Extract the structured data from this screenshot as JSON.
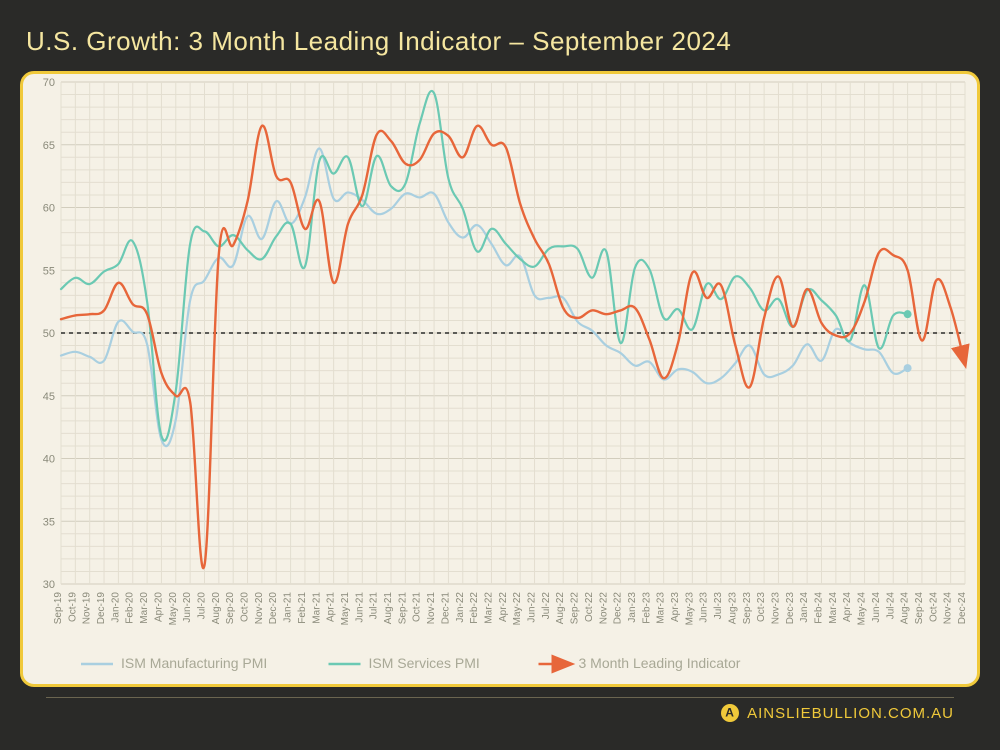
{
  "title": "U.S. Growth: 3 Month Leading Indicator – September 2024",
  "brand": "AINSLIEBULLION.COM.AU",
  "chart": {
    "type": "line",
    "background_color": "#f5f1e6",
    "border_color": "#f0c93a",
    "grid_minor_color": "#e3ded0",
    "grid_major_color": "#d2cdbd",
    "reference_line": {
      "y": 50,
      "color": "#2a2a28",
      "dash": "4 4"
    },
    "ylim": [
      30,
      70
    ],
    "ytick_step": 5,
    "yticks": [
      30,
      35,
      40,
      45,
      50,
      55,
      60,
      65,
      70
    ],
    "label_fontsize": 11,
    "x_categories": [
      "Sep-19",
      "Oct-19",
      "Nov-19",
      "Dec-19",
      "Jan-20",
      "Feb-20",
      "Mar-20",
      "Apr-20",
      "May-20",
      "Jun-20",
      "Jul-20",
      "Aug-20",
      "Sep-20",
      "Oct-20",
      "Nov-20",
      "Dec-20",
      "Jan-21",
      "Feb-21",
      "Mar-21",
      "Apr-21",
      "May-21",
      "Jun-21",
      "Jul-21",
      "Aug-21",
      "Sep-21",
      "Oct-21",
      "Nov-21",
      "Dec-21",
      "Jan-22",
      "Feb-22",
      "Mar-22",
      "Apr-22",
      "May-22",
      "Jun-22",
      "Jul-22",
      "Aug-22",
      "Sep-22",
      "Oct-22",
      "Nov-22",
      "Dec-22",
      "Jan-23",
      "Feb-23",
      "Mar-23",
      "Apr-23",
      "May-23",
      "Jun-23",
      "Jul-23",
      "Aug-23",
      "Sep-23",
      "Oct-23",
      "Nov-23",
      "Dec-23",
      "Jan-24",
      "Feb-24",
      "Mar-24",
      "Apr-24",
      "May-24",
      "Jun-24",
      "Jul-24",
      "Aug-24",
      "Sep-24",
      "Oct-24",
      "Nov-24",
      "Dec-24"
    ],
    "series": [
      {
        "name": "ISM Manufacturing PMI",
        "color": "#a9cfe0",
        "line_width": 2.2,
        "end_marker": {
          "index": 59,
          "shape": "circle",
          "size": 4
        },
        "values": [
          48.2,
          48.5,
          48.1,
          47.8,
          50.9,
          50.1,
          49.1,
          41.5,
          43.1,
          52.6,
          54.2,
          56.0,
          55.4,
          59.3,
          57.5,
          60.5,
          58.7,
          60.8,
          64.7,
          60.7,
          61.2,
          60.6,
          59.5,
          59.9,
          61.1,
          60.8,
          61.1,
          58.8,
          57.6,
          58.6,
          57.1,
          55.4,
          56.1,
          53.0,
          52.8,
          52.8,
          50.9,
          50.2,
          49.0,
          48.4,
          47.4,
          47.7,
          46.3,
          47.1,
          46.9,
          46.0,
          46.4,
          47.6,
          49.0,
          46.7,
          46.7,
          47.4,
          49.1,
          47.8,
          50.3,
          49.2,
          48.7,
          48.5,
          46.8,
          47.2,
          null,
          null,
          null,
          null
        ]
      },
      {
        "name": "ISM Services PMI",
        "color": "#6bc9b3",
        "line_width": 2.2,
        "end_marker": {
          "index": 59,
          "shape": "circle",
          "size": 4
        },
        "values": [
          53.5,
          54.4,
          53.9,
          54.9,
          55.5,
          57.3,
          52.5,
          41.8,
          45.4,
          57.1,
          58.1,
          56.9,
          57.8,
          56.6,
          55.9,
          57.7,
          58.7,
          55.3,
          63.7,
          62.7,
          64.0,
          60.1,
          64.1,
          61.7,
          61.9,
          66.7,
          69.1,
          62.3,
          59.9,
          56.5,
          58.3,
          57.1,
          55.9,
          55.3,
          56.7,
          56.9,
          56.7,
          54.4,
          56.5,
          49.2,
          55.2,
          55.1,
          51.2,
          51.9,
          50.3,
          53.9,
          52.7,
          54.5,
          53.6,
          51.8,
          52.7,
          50.5,
          53.4,
          52.6,
          51.4,
          49.4,
          53.8,
          48.8,
          51.4,
          51.5,
          null,
          null,
          null,
          null
        ]
      },
      {
        "name": "3 Month Leading Indicator",
        "color": "#e7663a",
        "line_width": 2.4,
        "arrow_end": true,
        "values": [
          51.1,
          51.4,
          51.5,
          51.8,
          54.0,
          52.3,
          51.5,
          46.8,
          45.0,
          44.5,
          31.5,
          56.3,
          57.0,
          60.5,
          66.5,
          62.5,
          62.0,
          58.3,
          60.5,
          54.0,
          58.7,
          61.0,
          65.8,
          65.3,
          63.5,
          63.8,
          65.9,
          65.7,
          64.0,
          66.5,
          65.0,
          64.8,
          60.3,
          57.5,
          55.5,
          52.0,
          51.2,
          51.8,
          51.5,
          51.8,
          52.0,
          49.5,
          46.4,
          49.2,
          54.8,
          52.8,
          53.8,
          49.0,
          45.7,
          51.2,
          54.5,
          50.5,
          53.5,
          50.8,
          49.8,
          50.0,
          52.5,
          56.4,
          56.2,
          55.0,
          49.4,
          54.2,
          52.0,
          47.5
        ]
      }
    ],
    "legend": {
      "position": "bottom-left",
      "fontsize": 14,
      "text_color": "#a8a896",
      "items": [
        {
          "label": "ISM Manufacturing PMI",
          "marker": "line",
          "color": "#a9cfe0"
        },
        {
          "label": "ISM Services PMI",
          "marker": "line",
          "color": "#6bc9b3"
        },
        {
          "label": "3 Month Leading Indicator",
          "marker": "arrow",
          "color": "#e7663a"
        }
      ]
    }
  }
}
